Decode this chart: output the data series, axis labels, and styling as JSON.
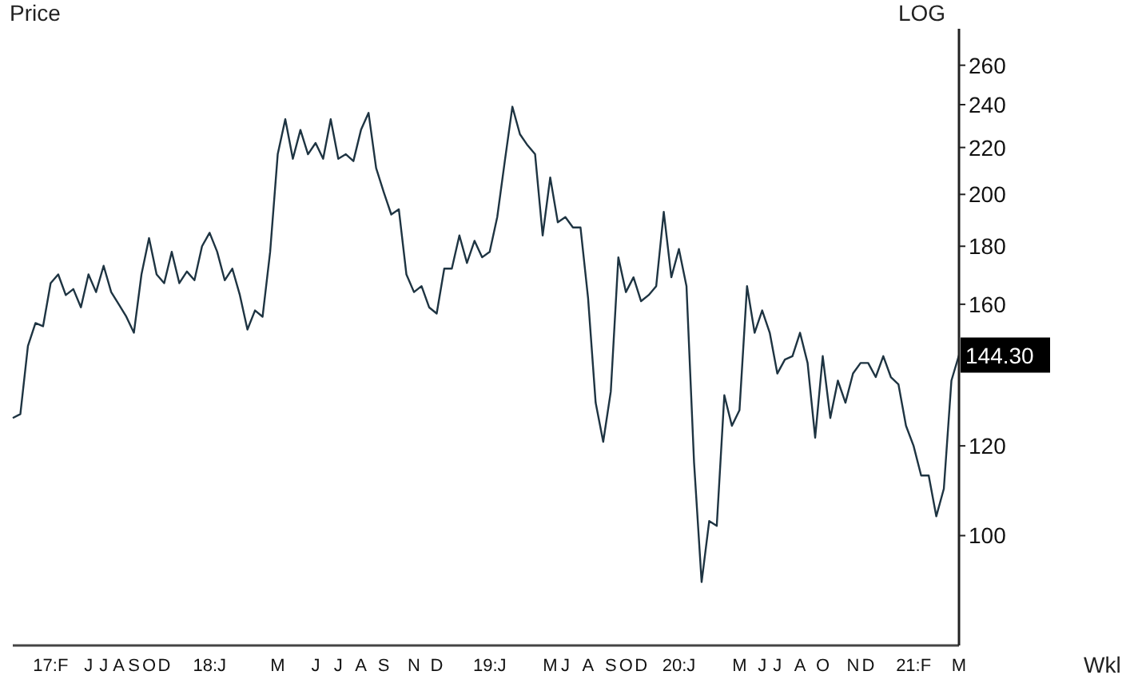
{
  "chart_data": {
    "type": "line",
    "ylabel": "Price",
    "log": "y",
    "grid": false,
    "legend": false,
    "marker": "none",
    "line_style": "solid",
    "annotations": [
      "LOG",
      "Wkl",
      "144.30"
    ],
    "categories": [
      null,
      null,
      null,
      null,
      null,
      "17:F",
      null,
      null,
      null,
      null,
      "J",
      null,
      "J",
      null,
      "A",
      null,
      "S",
      null,
      "O",
      null,
      "D",
      null,
      null,
      null,
      null,
      null,
      "18:J",
      null,
      null,
      null,
      null,
      null,
      null,
      null,
      null,
      "M",
      null,
      null,
      null,
      null,
      "J",
      null,
      null,
      "J",
      null,
      null,
      "A",
      null,
      null,
      "S",
      null,
      null,
      null,
      "N",
      null,
      null,
      "D",
      null,
      null,
      null,
      null,
      null,
      null,
      "19:J",
      null,
      null,
      null,
      null,
      null,
      null,
      null,
      "M",
      null,
      "J",
      null,
      null,
      "A",
      null,
      null,
      "S",
      null,
      "O",
      null,
      "D",
      null,
      null,
      null,
      null,
      "20:J",
      null,
      null,
      null,
      null,
      null,
      null,
      null,
      "M",
      null,
      null,
      "J",
      null,
      "J",
      null,
      null,
      "A",
      null,
      null,
      "O",
      null,
      null,
      null,
      "N",
      null,
      "D",
      null,
      null,
      null,
      null,
      null,
      "21:F",
      null,
      null,
      null,
      null,
      null,
      "M"
    ],
    "series": [
      {
        "color": "#1e3442",
        "values": [
          127,
          128,
          147,
          154,
          153,
          167,
          170,
          163,
          165,
          159,
          170,
          164,
          173,
          164,
          160,
          156,
          151,
          170,
          183,
          170,
          167,
          178,
          167,
          171,
          168,
          180,
          185,
          178,
          168,
          172,
          163,
          152,
          158,
          156,
          178,
          217,
          233,
          215,
          228,
          217,
          222,
          215,
          233,
          215,
          217,
          214,
          228,
          236,
          211,
          201,
          192,
          194,
          170,
          164,
          166,
          159,
          157,
          172,
          172,
          184,
          174,
          182,
          176,
          178,
          191,
          214,
          239,
          226,
          221,
          217,
          184,
          207,
          189,
          191,
          187,
          187,
          162,
          131,
          121,
          134,
          176,
          164,
          169,
          161,
          163,
          166,
          193,
          169,
          179,
          166,
          116,
          91,
          103,
          102,
          133,
          125,
          129,
          166,
          151,
          158,
          151,
          139,
          143,
          144,
          151,
          142,
          122,
          144,
          127,
          137,
          131,
          139,
          142,
          142,
          138,
          144,
          138,
          136,
          125,
          120,
          113,
          113,
          104,
          110,
          137,
          144.3
        ]
      }
    ],
    "ylim": [
      80,
      280
    ],
    "yticks": [
      100,
      120,
      160,
      180,
      200,
      220,
      240,
      260
    ]
  }
}
